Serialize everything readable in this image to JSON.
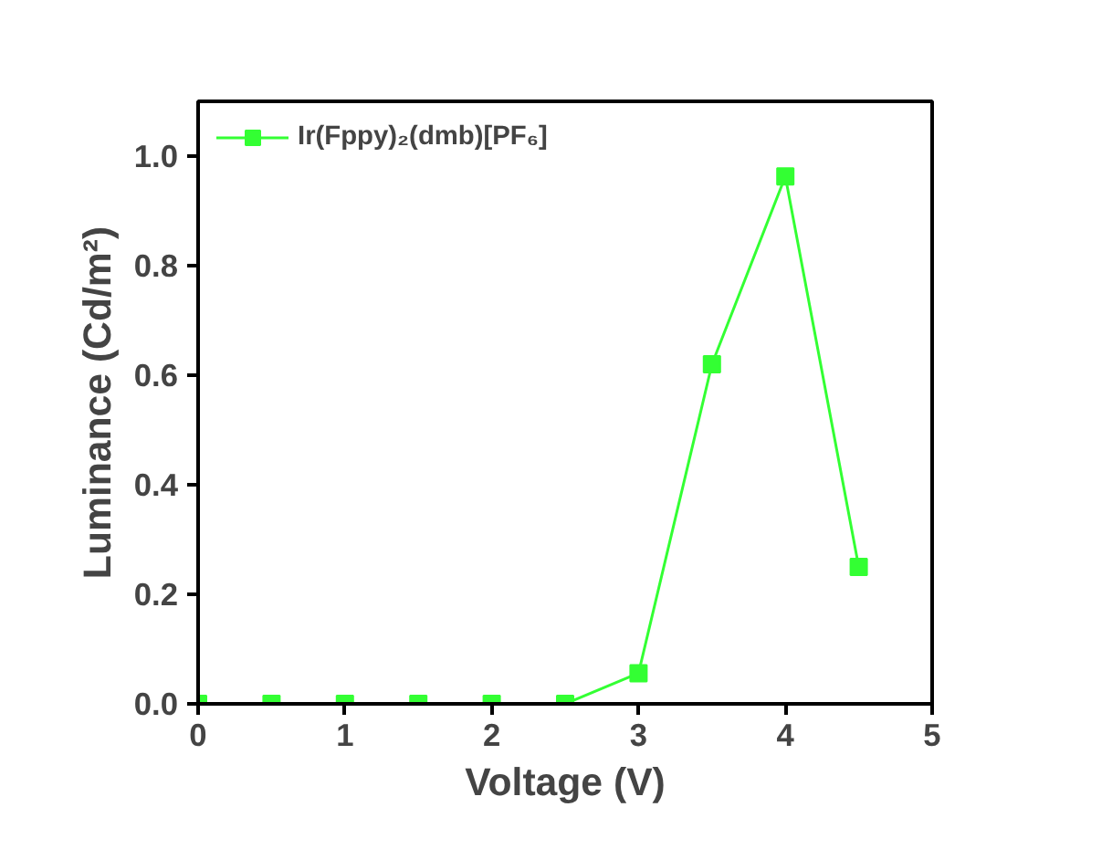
{
  "chart_data": {
    "type": "line",
    "xlabel": "Voltage (V)",
    "ylabel": "Luminance (Cd/m²)",
    "x": [
      0,
      0.5,
      1,
      1.5,
      2,
      2.5,
      3,
      3.5,
      4,
      4.5
    ],
    "series": [
      {
        "name": "Ir(Fppy)₂(dmb)[PF₆]",
        "color": "#33ff33",
        "values": [
          0,
          0,
          0,
          0,
          0,
          0,
          0.056,
          0.62,
          0.963,
          0.25
        ]
      }
    ],
    "xlim": [
      0,
      5
    ],
    "xticks": [
      0,
      1,
      2,
      3,
      4,
      5
    ],
    "ylim": [
      0,
      1.1
    ],
    "yticks": [
      {
        "value": 0,
        "label": "0.0"
      },
      0.2,
      0.4,
      0.6,
      0.8,
      {
        "value": 1,
        "label": "1.0"
      }
    ],
    "marker": "square",
    "line_style": "solid",
    "legend": "top left",
    "grid": false
  }
}
